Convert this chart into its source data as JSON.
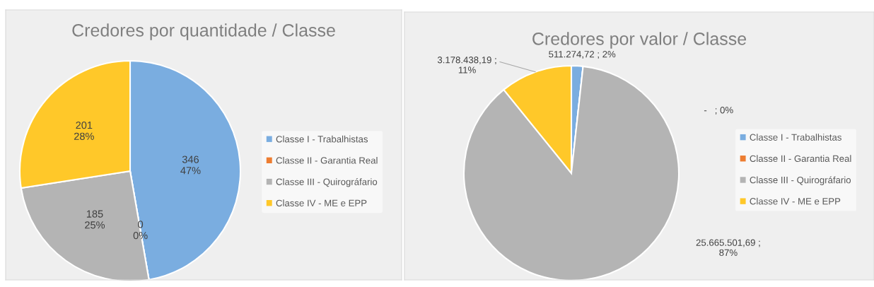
{
  "chart_data": [
    {
      "type": "pie",
      "title": "Credores por quantidade / Classe",
      "categories": [
        "Classe I - Trabalhistas",
        "Classe II - Garantia Real",
        "Classe III - Quirográfario",
        "Classe IV - ME e EPP"
      ],
      "values": [
        346,
        0,
        185,
        201
      ],
      "colors": [
        "#7aade0",
        "#ed7d31",
        "#b4b4b4",
        "#ffc829"
      ],
      "value_labels": [
        "346\n47%",
        "0\n0%",
        "185\n25%",
        "201\n28%"
      ],
      "legend": "right"
    },
    {
      "type": "pie",
      "title": "Credores por valor / Classe",
      "categories": [
        "Classe I - Trabalhistas",
        "Classe II - Garantia Real",
        "Classe III - Quirográfario",
        "Classe IV - ME e EPP"
      ],
      "values": [
        511274.72,
        0,
        25665501.69,
        3178438.19
      ],
      "colors": [
        "#7aade0",
        "#ed7d31",
        "#b4b4b4",
        "#ffc829"
      ],
      "value_labels": [
        "511.274,72 ; 2%",
        "-   ; 0%",
        "25.665.501,69 ;\n87%",
        "3.178.438,19 ;\n11%"
      ],
      "legend": "right"
    }
  ]
}
